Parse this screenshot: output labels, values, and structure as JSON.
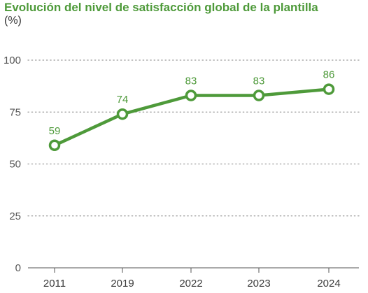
{
  "chart_data": {
    "type": "line",
    "title": "Evolución del nivel de satisfacción global de la plantilla",
    "subtitle": "(%)",
    "xlabel": "",
    "ylabel": "",
    "categories": [
      "2011",
      "2019",
      "2022",
      "2023",
      "2024"
    ],
    "series": [
      {
        "values": [
          59,
          74,
          83,
          83,
          86
        ]
      }
    ],
    "data_labels": [
      "59",
      "74",
      "83",
      "83",
      "86"
    ],
    "ylim": [
      0,
      100
    ],
    "yticks": [
      "0",
      "25",
      "50",
      "75",
      "100"
    ],
    "grid": "dotted horizontal",
    "legend": "none",
    "colors": {
      "line": "#4e9a3a",
      "label": "#4e9a3a",
      "grid": "#9a9a9a",
      "axis": "#555555"
    }
  }
}
